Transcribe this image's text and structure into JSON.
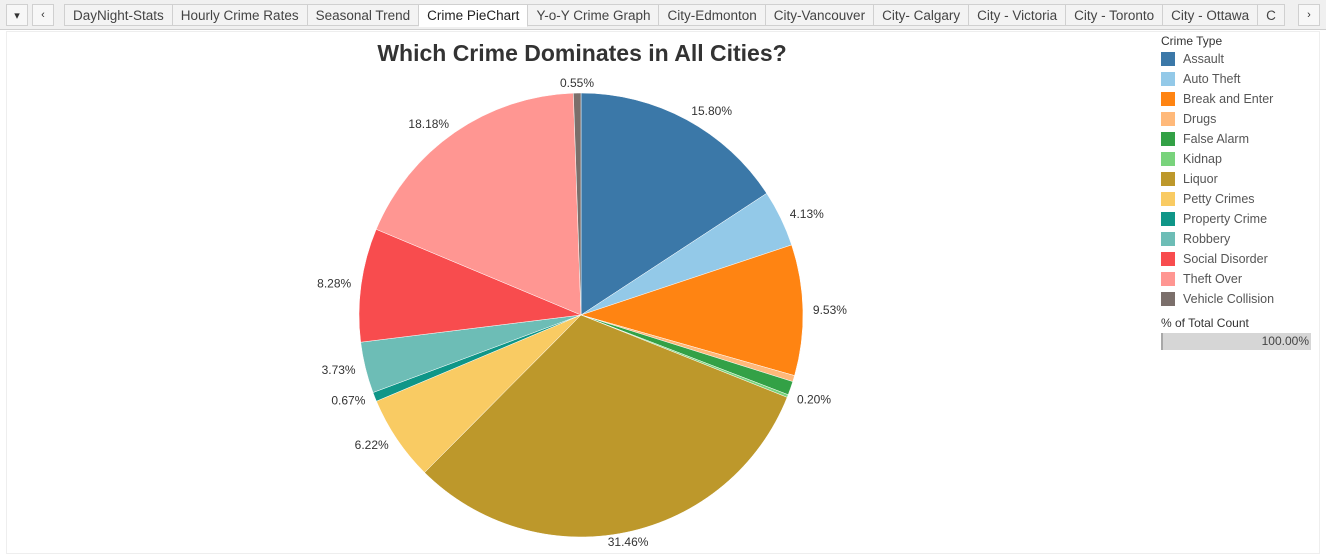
{
  "tabbar": {
    "tabs": [
      {
        "label": "DayNight-Stats",
        "active": false
      },
      {
        "label": "Hourly Crime Rates",
        "active": false
      },
      {
        "label": "Seasonal Trend",
        "active": false
      },
      {
        "label": "Crime PieChart",
        "active": true
      },
      {
        "label": "Y-o-Y Crime Graph",
        "active": false
      },
      {
        "label": "City-Edmonton",
        "active": false
      },
      {
        "label": "City-Vancouver",
        "active": false
      },
      {
        "label": "City- Calgary",
        "active": false
      },
      {
        "label": "City - Victoria",
        "active": false
      },
      {
        "label": "City - Toronto",
        "active": false
      },
      {
        "label": "City - Ottawa",
        "active": false
      },
      {
        "label": "C",
        "active": false
      }
    ],
    "menu_glyph": "▾",
    "prev_glyph": "‹",
    "next_glyph": "›"
  },
  "legend": {
    "title": "Crime Type",
    "size_title": "% of Total Count",
    "size_value": "100.00%"
  },
  "chart_data": {
    "type": "pie",
    "title": "Which Crime Dominates in All Cities?",
    "slices": [
      {
        "label": "Assault",
        "value": 15.8,
        "display": "15.80%",
        "color": "#3b78a8"
      },
      {
        "label": "Auto Theft",
        "value": 4.13,
        "display": "4.13%",
        "color": "#93c9e8"
      },
      {
        "label": "Break and Enter",
        "value": 9.53,
        "display": "9.53%",
        "color": "#ff8412"
      },
      {
        "label": "Drugs",
        "value": 0.45,
        "display": "",
        "color": "#ffb97a"
      },
      {
        "label": "False Alarm",
        "value": 1.0,
        "display": "",
        "color": "#33a146"
      },
      {
        "label": "Kidnap",
        "value": 0.2,
        "display": "0.20%",
        "color": "#79d37c"
      },
      {
        "label": "Liquor",
        "value": 31.46,
        "display": "31.46%",
        "color": "#bd982b"
      },
      {
        "label": "Petty Crimes",
        "value": 6.22,
        "display": "6.22%",
        "color": "#f9cb63"
      },
      {
        "label": "Property Crime",
        "value": 0.67,
        "display": "0.67%",
        "color": "#0f9688"
      },
      {
        "label": "Robbery",
        "value": 3.73,
        "display": "3.73%",
        "color": "#6dbdb6"
      },
      {
        "label": "Social Disorder",
        "value": 8.28,
        "display": "8.28%",
        "color": "#f84c4e"
      },
      {
        "label": "Theft Over",
        "value": 18.18,
        "display": "18.18%",
        "color": "#ff9692"
      },
      {
        "label": "Vehicle Collision",
        "value": 0.55,
        "display": "0.55%",
        "color": "#7b6f6b"
      }
    ],
    "legend_placement": "right"
  }
}
